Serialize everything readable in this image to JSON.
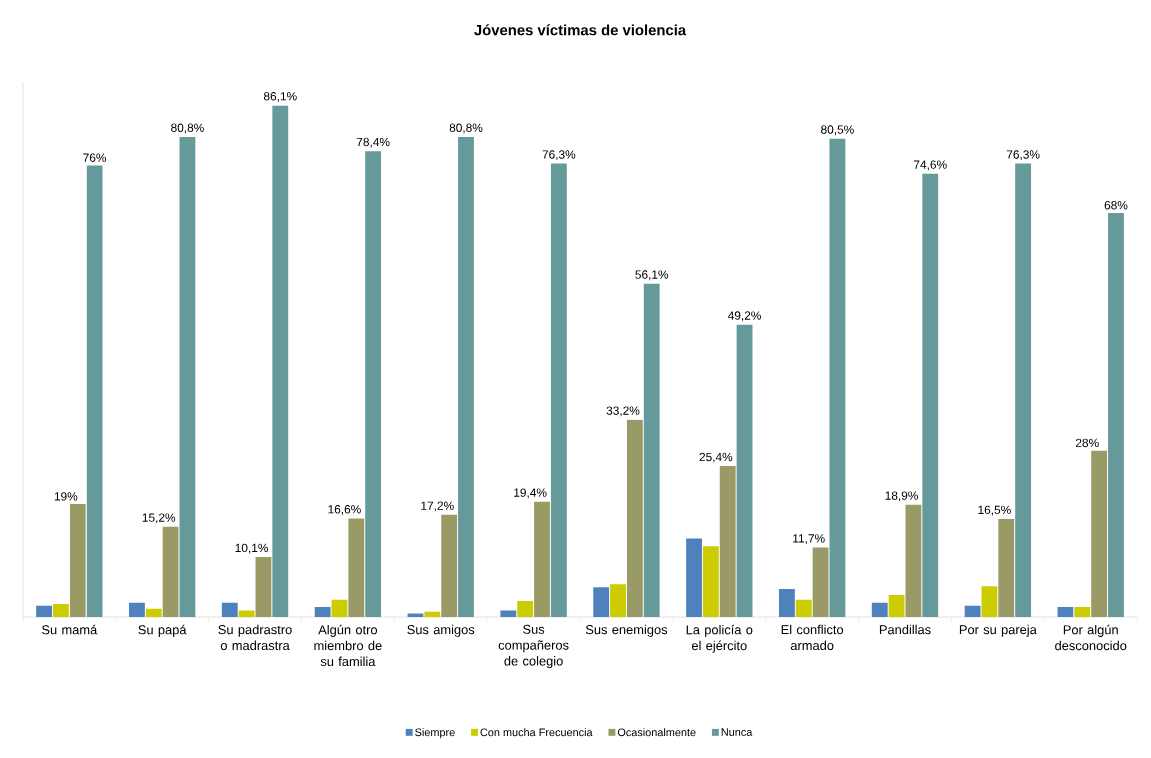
{
  "chart_data": {
    "type": "bar",
    "title": "Jóvenes víctimas de violencia",
    "categories": [
      "Su mamá",
      "Su papá",
      "Su padrastro o madrastra",
      "Algún otro miembro de su familia",
      "Sus amigos",
      "Sus compañeros de colegio",
      "Sus enemigos",
      "La policía o el ejército",
      "El conflicto armado",
      "Pandillas",
      "Por su pareja",
      "Por algún desconocido"
    ],
    "ylim": [
      0,
      90
    ],
    "legend": "bottom",
    "grid": false,
    "series": [
      {
        "name": "Siempre",
        "color": "#4f81bd",
        "values": [
          1.9,
          2.4,
          2.4,
          1.7,
          0.6,
          1.1,
          5.0,
          13.2,
          4.7,
          2.4,
          1.9,
          1.7
        ]
      },
      {
        "name": "Con mucha Frecuencia",
        "color": "#cccc00",
        "values": [
          2.2,
          1.4,
          1.1,
          2.9,
          0.9,
          2.7,
          5.5,
          11.9,
          2.9,
          3.7,
          5.2,
          1.7
        ]
      },
      {
        "name": "Ocasionalmente",
        "color": "#9a9a66",
        "values": [
          19,
          15.2,
          10.1,
          16.6,
          17.2,
          19.4,
          33.2,
          25.4,
          11.7,
          18.9,
          16.5,
          28
        ],
        "value_labels": [
          "19%",
          "15,2%",
          "10,1%",
          "16,6%",
          "17,2%",
          "19,4%",
          "33,2%",
          "25,4%",
          "11,7%",
          "18,9%",
          "16,5%",
          "28%"
        ]
      },
      {
        "name": "Nunca",
        "color": "#669999",
        "values": [
          76,
          80.8,
          86.1,
          78.4,
          80.8,
          76.3,
          56.1,
          49.2,
          80.5,
          74.6,
          76.3,
          68
        ],
        "value_labels": [
          "76%",
          "80,8%",
          "86,1%",
          "78,4%",
          "80,8%",
          "76,3%",
          "56,1%",
          "49,2%",
          "80,5%",
          "74,6%",
          "76,3%",
          "68%"
        ]
      }
    ]
  }
}
